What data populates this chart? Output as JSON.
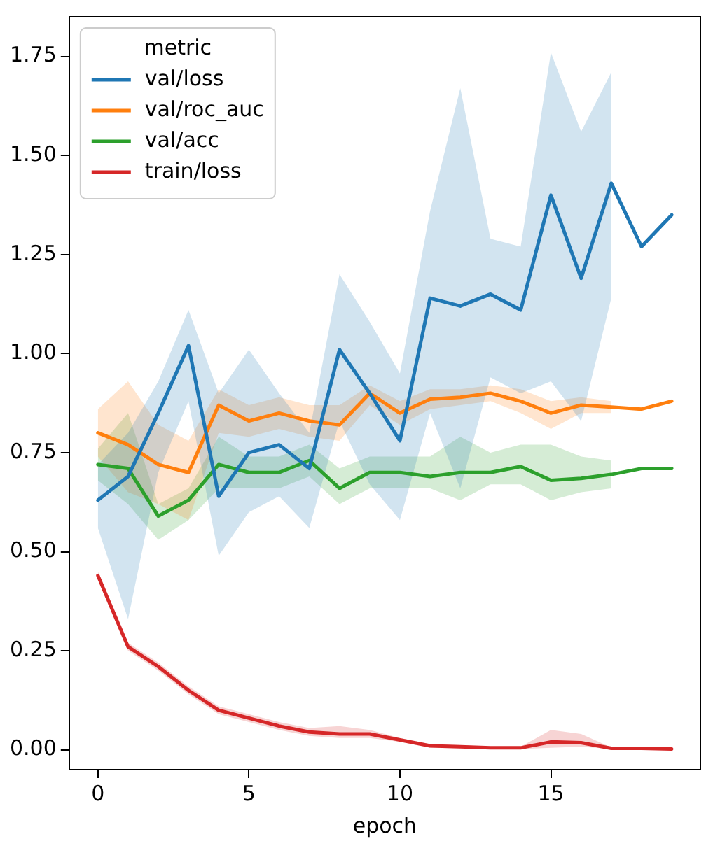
{
  "chart_data": {
    "type": "line",
    "xlabel": "epoch",
    "legend_title": "metric",
    "legend": "top left",
    "grid": false,
    "marker": "none",
    "line_style": "solid",
    "x": [
      0,
      1,
      2,
      3,
      4,
      5,
      6,
      7,
      8,
      9,
      10,
      11,
      12,
      13,
      14,
      15,
      16,
      17,
      18,
      19
    ],
    "xlim": [
      -0.95,
      19.95
    ],
    "xticks": [
      0,
      5,
      10,
      15
    ],
    "ylim": [
      -0.05,
      1.85
    ],
    "yticks": [
      {
        "value": 0,
        "label": "0.00"
      },
      {
        "value": 0.25,
        "label": "0.25"
      },
      {
        "value": 0.5,
        "label": "0.50"
      },
      {
        "value": 0.75,
        "label": "0.75"
      },
      {
        "value": 1,
        "label": "1.00"
      },
      {
        "value": 1.25,
        "label": "1.25"
      },
      {
        "value": 1.5,
        "label": "1.50"
      },
      {
        "value": 1.75,
        "label": "1.75"
      }
    ],
    "series": [
      {
        "name": "val/loss",
        "color": "#1f77b4",
        "values": [
          0.63,
          0.69,
          0.85,
          1.02,
          0.64,
          0.75,
          0.77,
          0.71,
          1.01,
          0.9,
          0.78,
          1.14,
          1.12,
          1.15,
          1.11,
          1.4,
          1.19,
          1.43,
          1.27,
          1.35
        ],
        "lower": [
          0.56,
          0.33,
          0.7,
          0.88,
          0.49,
          0.6,
          0.64,
          0.56,
          0.83,
          0.67,
          0.58,
          0.85,
          0.66,
          0.94,
          0.9,
          0.93,
          0.83,
          1.14,
          null,
          null
        ],
        "upper": [
          0.72,
          0.8,
          0.93,
          1.11,
          0.9,
          1.01,
          0.9,
          0.8,
          1.2,
          1.08,
          0.95,
          1.36,
          1.67,
          1.29,
          1.27,
          1.76,
          1.56,
          1.71,
          null,
          null
        ]
      },
      {
        "name": "val/roc_auc",
        "color": "#ff7f0e",
        "values": [
          0.8,
          0.77,
          0.72,
          0.7,
          0.87,
          0.83,
          0.85,
          0.83,
          0.82,
          0.9,
          0.85,
          0.885,
          0.89,
          0.9,
          0.88,
          0.85,
          0.87,
          0.865,
          0.86,
          0.88
        ],
        "lower": [
          0.74,
          0.65,
          0.62,
          0.58,
          0.8,
          0.79,
          0.81,
          0.79,
          0.78,
          0.87,
          0.82,
          0.86,
          0.87,
          0.88,
          0.85,
          0.81,
          0.85,
          0.85,
          null,
          null
        ],
        "upper": [
          0.86,
          0.93,
          0.82,
          0.78,
          0.91,
          0.87,
          0.89,
          0.87,
          0.87,
          0.92,
          0.88,
          0.91,
          0.91,
          0.92,
          0.91,
          0.88,
          0.89,
          0.88,
          null,
          null
        ]
      },
      {
        "name": "val/acc",
        "color": "#2ca02c",
        "values": [
          0.72,
          0.71,
          0.59,
          0.63,
          0.72,
          0.7,
          0.7,
          0.73,
          0.66,
          0.7,
          0.7,
          0.69,
          0.7,
          0.7,
          0.715,
          0.68,
          0.685,
          0.695,
          0.71,
          0.71
        ],
        "lower": [
          0.68,
          0.62,
          0.53,
          0.58,
          0.66,
          0.66,
          0.66,
          0.69,
          0.62,
          0.66,
          0.66,
          0.66,
          0.63,
          0.67,
          0.67,
          0.63,
          0.65,
          0.66,
          null,
          null
        ],
        "upper": [
          0.76,
          0.85,
          0.62,
          0.66,
          0.79,
          0.74,
          0.74,
          0.77,
          0.71,
          0.74,
          0.74,
          0.74,
          0.79,
          0.75,
          0.77,
          0.77,
          0.74,
          0.73,
          null,
          null
        ]
      },
      {
        "name": "train/loss",
        "color": "#d62728",
        "values": [
          0.44,
          0.26,
          0.21,
          0.15,
          0.1,
          0.08,
          0.06,
          0.045,
          0.04,
          0.04,
          0.025,
          0.01,
          0.008,
          0.005,
          0.005,
          0.02,
          0.018,
          0.004,
          0.004,
          0.002
        ],
        "lower": [
          0.43,
          0.25,
          0.2,
          0.14,
          0.09,
          0.07,
          0.05,
          0.035,
          0.03,
          0.03,
          0.02,
          0.005,
          0.004,
          0.002,
          0.002,
          0.005,
          0.008,
          0.002,
          null,
          null
        ],
        "upper": [
          0.45,
          0.27,
          0.22,
          0.16,
          0.11,
          0.09,
          0.07,
          0.055,
          0.06,
          0.05,
          0.03,
          0.015,
          0.012,
          0.008,
          0.008,
          0.05,
          0.04,
          0.006,
          null,
          null
        ]
      }
    ]
  }
}
